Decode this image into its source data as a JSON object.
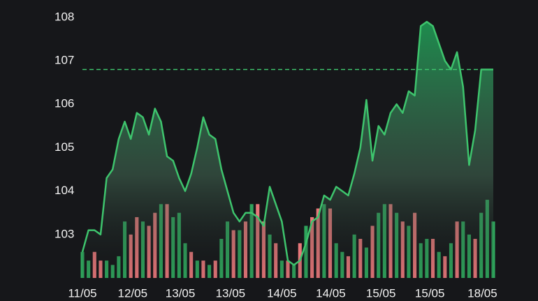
{
  "chart_data": {
    "type": "area",
    "x": [
      0,
      1,
      2,
      3,
      4,
      5,
      6,
      7,
      8,
      9,
      10,
      11,
      12,
      13,
      14,
      15,
      16,
      17,
      18,
      19,
      20,
      21,
      22,
      23,
      24,
      25,
      26,
      27,
      28,
      29,
      30,
      31,
      32,
      33,
      34,
      35,
      36,
      37,
      38,
      39,
      40,
      41,
      42,
      43,
      44,
      45,
      46,
      47,
      48,
      49,
      50,
      51,
      52,
      53,
      54,
      55,
      56,
      57,
      58,
      59,
      60,
      61,
      62,
      63,
      64,
      65,
      66,
      67,
      68
    ],
    "xlim": [
      0,
      68
    ],
    "xticks": [
      {
        "value": 0,
        "label": "11/05"
      },
      {
        "value": 8.3,
        "label": "12/05"
      },
      {
        "value": 16.2,
        "label": "13/05"
      },
      {
        "value": 24.5,
        "label": "13/05"
      },
      {
        "value": 33,
        "label": "14/05"
      },
      {
        "value": 41.1,
        "label": "14/05"
      },
      {
        "value": 49.4,
        "label": "15/05"
      },
      {
        "value": 57.5,
        "label": "15/05"
      },
      {
        "value": 66.2,
        "label": "18/05"
      }
    ],
    "ylim": [
      102,
      108.4
    ],
    "yticks": [
      103,
      104,
      105,
      106,
      107,
      108
    ],
    "series": [
      {
        "color": "#3ec46d",
        "values": [
          102.6,
          103.1,
          103.1,
          103.0,
          104.3,
          104.5,
          105.2,
          105.6,
          105.2,
          105.8,
          105.7,
          105.3,
          105.9,
          105.6,
          104.8,
          104.7,
          104.3,
          104.0,
          104.4,
          105.0,
          105.7,
          105.3,
          105.2,
          104.5,
          104.0,
          103.5,
          103.3,
          103.5,
          103.5,
          103.4,
          103.2,
          104.1,
          103.7,
          103.3,
          102.4,
          102.3,
          102.4,
          102.8,
          103.3,
          103.4,
          103.9,
          103.8,
          104.1,
          104.0,
          103.9,
          104.4,
          105.0,
          106.1,
          104.7,
          105.5,
          105.3,
          105.8,
          106.0,
          105.8,
          106.3,
          106.2,
          107.8,
          107.9,
          107.8,
          107.4,
          107.0,
          106.8,
          107.2,
          106.4,
          104.6,
          105.4,
          106.8,
          106.8,
          106.8
        ]
      }
    ],
    "volume": {
      "up_color": "#2fa55c",
      "down_color": "#e8777a",
      "values": [
        102.6,
        102.4,
        102.6,
        102.4,
        102.4,
        102.3,
        102.5,
        103.3,
        103.0,
        103.4,
        103.3,
        103.2,
        103.5,
        103.7,
        103.7,
        103.4,
        103.5,
        102.8,
        102.6,
        102.4,
        102.4,
        102.3,
        102.4,
        102.9,
        103.3,
        103.1,
        103.1,
        103.3,
        103.7,
        103.7,
        103.3,
        103.0,
        102.8,
        102.4,
        102.4,
        102.3,
        102.8,
        103.2,
        103.4,
        103.6,
        103.7,
        103.6,
        102.8,
        102.6,
        102.5,
        103.0,
        102.9,
        102.7,
        103.2,
        103.5,
        103.7,
        103.7,
        103.5,
        103.3,
        103.2,
        103.5,
        102.8,
        102.9,
        102.9,
        102.6,
        102.5,
        102.8,
        103.3,
        103.3,
        103.0,
        102.9,
        103.5,
        103.8,
        103.3
      ],
      "up": [
        true,
        true,
        false,
        false,
        true,
        true,
        true,
        true,
        false,
        false,
        true,
        false,
        false,
        true,
        false,
        true,
        true,
        true,
        false,
        true,
        false,
        true,
        false,
        true,
        true,
        false,
        true,
        false,
        true,
        false,
        false,
        true,
        false,
        true,
        false,
        true,
        false,
        true,
        false,
        false,
        true,
        false,
        true,
        true,
        false,
        true,
        false,
        true,
        false,
        true,
        true,
        false,
        true,
        false,
        true,
        false,
        true,
        true,
        false,
        true,
        false,
        true,
        false,
        true,
        true,
        false,
        true,
        true,
        true
      ]
    },
    "reference_line": {
      "value": 106.8,
      "color": "#3ec46d",
      "dashed": true
    }
  }
}
